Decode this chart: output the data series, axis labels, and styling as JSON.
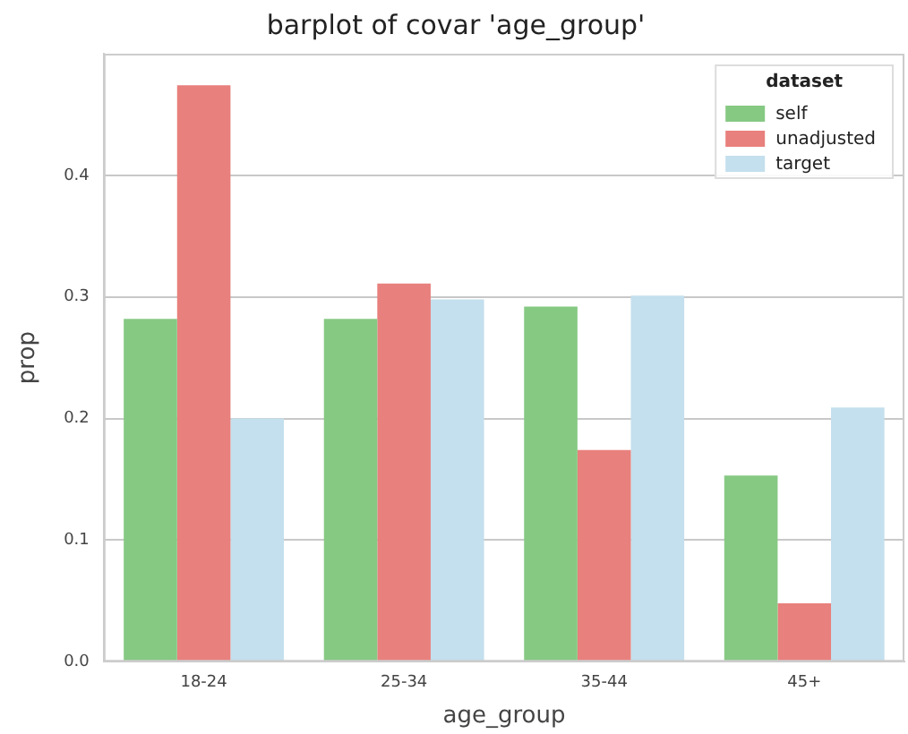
{
  "chart_data": {
    "type": "bar",
    "title": "barplot of covar 'age_group'",
    "xlabel": "age_group",
    "ylabel": "prop",
    "legend_title": "dataset",
    "categories": [
      "18-24",
      "25-34",
      "35-44",
      "45+"
    ],
    "series": [
      {
        "name": "self",
        "color": "#86c983",
        "values": [
          0.282,
          0.282,
          0.292,
          0.153
        ]
      },
      {
        "name": "unadjusted",
        "color": "#e8807d",
        "values": [
          0.474,
          0.311,
          0.174,
          0.048
        ]
      },
      {
        "name": "target",
        "color": "#c4dfed",
        "values": [
          0.2,
          0.298,
          0.301,
          0.209
        ]
      }
    ],
    "ylim": [
      0,
      0.5
    ],
    "yticks": [
      {
        "value": 0,
        "label": "0.0"
      },
      0.1,
      0.2,
      0.3,
      0.4
    ],
    "grid": "y",
    "legend": "top right"
  }
}
